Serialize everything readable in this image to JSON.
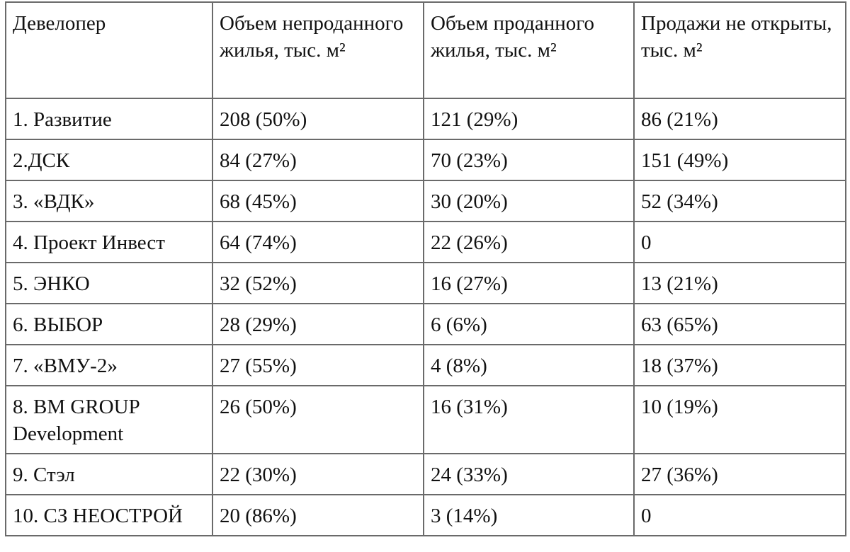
{
  "table": {
    "header": [
      "Девелопер",
      "Объем непроданного жилья, тыс. м²",
      "Объем проданного жилья, тыс. м²",
      "Продажи не открыты, тыс. м²"
    ],
    "rows": [
      [
        "1. Развитие",
        "208 (50%)",
        "121 (29%)",
        "86 (21%)"
      ],
      [
        "2.ДСК",
        "84 (27%)",
        "70 (23%)",
        "151 (49%)"
      ],
      [
        "3. «ВДК»",
        "68 (45%)",
        "30 (20%)",
        "52 (34%)"
      ],
      [
        "4. Проект Инвест",
        "64 (74%)",
        "22 (26%)",
        "0"
      ],
      [
        "5. ЭНКО",
        "32 (52%)",
        "16 (27%)",
        "13 (21%)"
      ],
      [
        "6. ВЫБОР",
        "28 (29%)",
        "6 (6%)",
        "63 (65%)"
      ],
      [
        "7. «ВМУ-2»",
        "27 (55%)",
        "4 (8%)",
        "18 (37%)"
      ],
      [
        "8. BM GROUP Development",
        "26 (50%)",
        "16 (31%)",
        "10 (19%)"
      ],
      [
        "9. Стэл",
        "22 (30%)",
        "24 (33%)",
        "27 (36%)"
      ],
      [
        "10. СЗ НЕОСТРОЙ",
        "20 (86%)",
        "3 (14%)",
        "0"
      ]
    ]
  }
}
